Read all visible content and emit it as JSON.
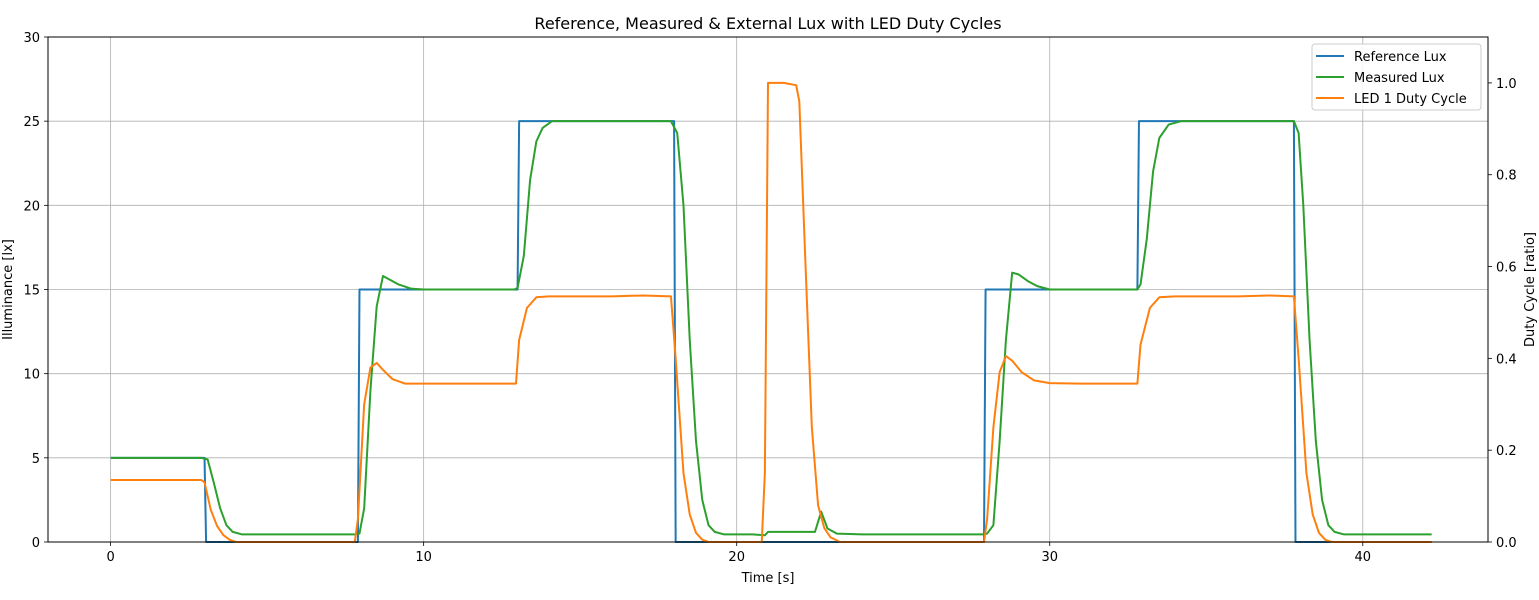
{
  "chart_data": {
    "type": "line",
    "title": "Reference, Measured & External Lux with LED Duty Cycles",
    "xlabel": "Time [s]",
    "ylabel_left": "Illuminance [lx]",
    "ylabel_right": "Duty Cycle [ratio]",
    "xlim": [
      -2,
      44
    ],
    "ylim_left": [
      0,
      30
    ],
    "ylim_right": [
      0,
      1.1
    ],
    "x_ticks": [
      0,
      10,
      20,
      30,
      40
    ],
    "y_left_ticks": [
      0,
      5,
      10,
      15,
      20,
      25,
      30
    ],
    "y_right_ticks": [
      0.0,
      0.2,
      0.4,
      0.6,
      0.8,
      1.0
    ],
    "grid": true,
    "legend_position": "top-right",
    "series": [
      {
        "name": "Reference Lux",
        "axis": "left",
        "color": "#1f77b4",
        "points": [
          [
            0,
            5
          ],
          [
            3,
            5
          ],
          [
            3.05,
            0
          ],
          [
            7.9,
            0
          ],
          [
            7.95,
            15
          ],
          [
            13,
            15
          ],
          [
            13.05,
            25
          ],
          [
            18,
            25
          ],
          [
            18.05,
            0
          ],
          [
            27.9,
            0
          ],
          [
            27.95,
            15
          ],
          [
            32.8,
            15
          ],
          [
            32.85,
            25
          ],
          [
            37.8,
            25
          ],
          [
            37.85,
            0
          ],
          [
            42.2,
            0
          ]
        ]
      },
      {
        "name": "Measured Lux",
        "axis": "left",
        "color": "#2ca02c",
        "points": [
          [
            0,
            5
          ],
          [
            1,
            5
          ],
          [
            2,
            5
          ],
          [
            2.9,
            5
          ],
          [
            3.1,
            4.9
          ],
          [
            3.3,
            3.5
          ],
          [
            3.5,
            2
          ],
          [
            3.7,
            1
          ],
          [
            3.9,
            0.6
          ],
          [
            4.2,
            0.45
          ],
          [
            5,
            0.45
          ],
          [
            6,
            0.45
          ],
          [
            7,
            0.45
          ],
          [
            7.8,
            0.45
          ],
          [
            7.95,
            0.5
          ],
          [
            8.1,
            2
          ],
          [
            8.3,
            9
          ],
          [
            8.5,
            14
          ],
          [
            8.7,
            15.8
          ],
          [
            8.9,
            15.6
          ],
          [
            9.2,
            15.3
          ],
          [
            9.6,
            15.05
          ],
          [
            10,
            15
          ],
          [
            11,
            15
          ],
          [
            12,
            15
          ],
          [
            12.9,
            15
          ],
          [
            13,
            15.1
          ],
          [
            13.2,
            17
          ],
          [
            13.4,
            21.5
          ],
          [
            13.6,
            23.8
          ],
          [
            13.8,
            24.6
          ],
          [
            14.1,
            25
          ],
          [
            15,
            25
          ],
          [
            16,
            25
          ],
          [
            17,
            25
          ],
          [
            17.9,
            25
          ],
          [
            18.1,
            24.3
          ],
          [
            18.3,
            20
          ],
          [
            18.5,
            12
          ],
          [
            18.7,
            6
          ],
          [
            18.9,
            2.5
          ],
          [
            19.1,
            1
          ],
          [
            19.3,
            0.6
          ],
          [
            19.6,
            0.45
          ],
          [
            20.5,
            0.45
          ],
          [
            20.9,
            0.4
          ],
          [
            21,
            0.6
          ],
          [
            21.5,
            0.6
          ],
          [
            22,
            0.6
          ],
          [
            22.5,
            0.6
          ],
          [
            22.7,
            1.8
          ],
          [
            22.9,
            0.8
          ],
          [
            23.2,
            0.5
          ],
          [
            24,
            0.45
          ],
          [
            25,
            0.45
          ],
          [
            26,
            0.45
          ],
          [
            27,
            0.45
          ],
          [
            27.9,
            0.45
          ],
          [
            28,
            0.5
          ],
          [
            28.2,
            1
          ],
          [
            28.4,
            6
          ],
          [
            28.6,
            12
          ],
          [
            28.8,
            16
          ],
          [
            29,
            15.9
          ],
          [
            29.3,
            15.5
          ],
          [
            29.6,
            15.2
          ],
          [
            30,
            15
          ],
          [
            31,
            15
          ],
          [
            32,
            15
          ],
          [
            32.8,
            15
          ],
          [
            32.9,
            15.3
          ],
          [
            33.1,
            18
          ],
          [
            33.3,
            22
          ],
          [
            33.5,
            24
          ],
          [
            33.8,
            24.8
          ],
          [
            34.2,
            25
          ],
          [
            35,
            25
          ],
          [
            36,
            25
          ],
          [
            37,
            25
          ],
          [
            37.8,
            25
          ],
          [
            37.95,
            24.3
          ],
          [
            38.1,
            20
          ],
          [
            38.3,
            12
          ],
          [
            38.5,
            6
          ],
          [
            38.7,
            2.5
          ],
          [
            38.9,
            1
          ],
          [
            39.1,
            0.6
          ],
          [
            39.4,
            0.45
          ],
          [
            40,
            0.45
          ],
          [
            41,
            0.45
          ],
          [
            42.2,
            0.45
          ]
        ]
      },
      {
        "name": "LED 1 Duty Cycle",
        "axis": "right",
        "color": "#ff7f0e",
        "points": [
          [
            0,
            0.135
          ],
          [
            1,
            0.135
          ],
          [
            2,
            0.135
          ],
          [
            2.9,
            0.135
          ],
          [
            3,
            0.13
          ],
          [
            3.2,
            0.07
          ],
          [
            3.4,
            0.035
          ],
          [
            3.6,
            0.015
          ],
          [
            3.8,
            0.005
          ],
          [
            4,
            0
          ],
          [
            5,
            0
          ],
          [
            6,
            0
          ],
          [
            7,
            0
          ],
          [
            7.8,
            0
          ],
          [
            7.9,
            0.05
          ],
          [
            8.1,
            0.3
          ],
          [
            8.3,
            0.38
          ],
          [
            8.5,
            0.39
          ],
          [
            8.7,
            0.375
          ],
          [
            9,
            0.355
          ],
          [
            9.4,
            0.345
          ],
          [
            10,
            0.345
          ],
          [
            11,
            0.345
          ],
          [
            12,
            0.345
          ],
          [
            12.95,
            0.345
          ],
          [
            13.05,
            0.44
          ],
          [
            13.3,
            0.51
          ],
          [
            13.6,
            0.533
          ],
          [
            14,
            0.535
          ],
          [
            15,
            0.535
          ],
          [
            16,
            0.535
          ],
          [
            17,
            0.537
          ],
          [
            17.9,
            0.535
          ],
          [
            18.05,
            0.4
          ],
          [
            18.3,
            0.15
          ],
          [
            18.5,
            0.06
          ],
          [
            18.7,
            0.02
          ],
          [
            18.9,
            0.005
          ],
          [
            19.1,
            0
          ],
          [
            20,
            0
          ],
          [
            20.8,
            0
          ],
          [
            20.9,
            0.15
          ],
          [
            21,
            1.0
          ],
          [
            21.5,
            1.0
          ],
          [
            21.9,
            0.995
          ],
          [
            22,
            0.96
          ],
          [
            22.2,
            0.6
          ],
          [
            22.4,
            0.25
          ],
          [
            22.6,
            0.08
          ],
          [
            22.8,
            0.03
          ],
          [
            23,
            0.01
          ],
          [
            23.3,
            0
          ],
          [
            24,
            0
          ],
          [
            25,
            0
          ],
          [
            26,
            0
          ],
          [
            27,
            0
          ],
          [
            27.9,
            0
          ],
          [
            28,
            0.05
          ],
          [
            28.2,
            0.25
          ],
          [
            28.4,
            0.37
          ],
          [
            28.6,
            0.405
          ],
          [
            28.8,
            0.395
          ],
          [
            29.1,
            0.37
          ],
          [
            29.5,
            0.352
          ],
          [
            30,
            0.346
          ],
          [
            31,
            0.345
          ],
          [
            32,
            0.345
          ],
          [
            32.8,
            0.345
          ],
          [
            32.9,
            0.43
          ],
          [
            33.2,
            0.51
          ],
          [
            33.5,
            0.533
          ],
          [
            34,
            0.535
          ],
          [
            35,
            0.535
          ],
          [
            36,
            0.535
          ],
          [
            37,
            0.537
          ],
          [
            37.8,
            0.535
          ],
          [
            37.95,
            0.4
          ],
          [
            38.2,
            0.15
          ],
          [
            38.4,
            0.06
          ],
          [
            38.6,
            0.02
          ],
          [
            38.8,
            0.005
          ],
          [
            39,
            0
          ],
          [
            40,
            0
          ],
          [
            41,
            0
          ],
          [
            42.2,
            0
          ]
        ]
      }
    ]
  }
}
